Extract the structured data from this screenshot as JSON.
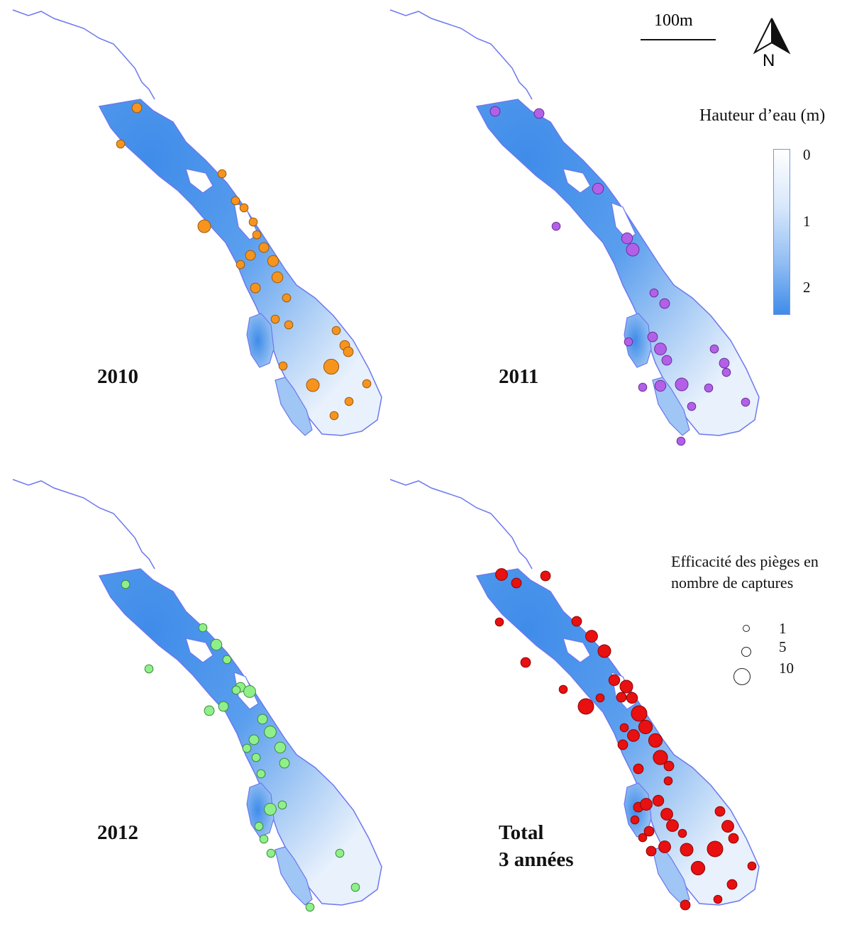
{
  "scale_bar": {
    "label": "100m"
  },
  "north_arrow": {
    "label": "N"
  },
  "depth_legend": {
    "title": "Hauteur d’eau (m)",
    "ticks": [
      "0",
      "1",
      "2"
    ],
    "color_top": "#ffffff",
    "color_bottom": "#3f8ce9"
  },
  "capture_legend": {
    "title_line1": "Efficacité des pièges en",
    "title_line2": "nombre de captures",
    "sizes": [
      "1",
      "5",
      "10"
    ]
  },
  "panels": [
    {
      "year": "2010",
      "label_line2": "",
      "marker_color": "#f7941d",
      "marker_stroke": "#9a5a10",
      "traps": [
        [
          193,
          152,
          2
        ],
        [
          170,
          203,
          1
        ],
        [
          313,
          245,
          1
        ],
        [
          332,
          283,
          1
        ],
        [
          288,
          319,
          5
        ],
        [
          344,
          293,
          1
        ],
        [
          357,
          313,
          1
        ],
        [
          362,
          331,
          1
        ],
        [
          372,
          349,
          2
        ],
        [
          385,
          368,
          3
        ],
        [
          353,
          360,
          2
        ],
        [
          339,
          373,
          1
        ],
        [
          391,
          391,
          3
        ],
        [
          360,
          406,
          2
        ],
        [
          404,
          420,
          1
        ],
        [
          388,
          450,
          1
        ],
        [
          407,
          458,
          1
        ],
        [
          474,
          466,
          1
        ],
        [
          486,
          487,
          2
        ],
        [
          491,
          496,
          2
        ],
        [
          467,
          517,
          8
        ],
        [
          399,
          516,
          1
        ],
        [
          441,
          543,
          5
        ],
        [
          517,
          541,
          1
        ],
        [
          492,
          566,
          1
        ],
        [
          471,
          586,
          1
        ]
      ]
    },
    {
      "year": "2011",
      "label_line2": "",
      "marker_color": "#b260e8",
      "marker_stroke": "#6b2f96",
      "traps": [
        [
          698,
          157,
          2
        ],
        [
          760,
          160,
          2
        ],
        [
          843,
          266,
          3
        ],
        [
          784,
          319,
          1
        ],
        [
          884,
          336,
          3
        ],
        [
          892,
          352,
          5
        ],
        [
          922,
          413,
          1
        ],
        [
          937,
          428,
          2
        ],
        [
          920,
          475,
          2
        ],
        [
          886,
          482,
          1
        ],
        [
          931,
          492,
          4
        ],
        [
          940,
          508,
          2
        ],
        [
          1007,
          492,
          1
        ],
        [
          1021,
          512,
          2
        ],
        [
          1024,
          525,
          1
        ],
        [
          961,
          542,
          5
        ],
        [
          931,
          544,
          3
        ],
        [
          906,
          546,
          1
        ],
        [
          999,
          547,
          1
        ],
        [
          975,
          573,
          1
        ],
        [
          1051,
          567,
          1
        ],
        [
          960,
          622,
          1
        ]
      ]
    },
    {
      "year": "2012",
      "label_line2": "",
      "marker_color": "#8ff08a",
      "marker_stroke": "#3c8a3a",
      "traps": [
        [
          177,
          824,
          1
        ],
        [
          286,
          885,
          1
        ],
        [
          305,
          909,
          3
        ],
        [
          320,
          930,
          1
        ],
        [
          210,
          943,
          1
        ],
        [
          339,
          969,
          2
        ],
        [
          352,
          975,
          4
        ],
        [
          333,
          973,
          1
        ],
        [
          295,
          1002,
          2
        ],
        [
          315,
          996,
          2
        ],
        [
          370,
          1014,
          2
        ],
        [
          381,
          1032,
          4
        ],
        [
          358,
          1043,
          2
        ],
        [
          348,
          1055,
          1
        ],
        [
          395,
          1054,
          3
        ],
        [
          361,
          1068,
          1
        ],
        [
          401,
          1076,
          2
        ],
        [
          368,
          1091,
          1
        ],
        [
          381,
          1141,
          4
        ],
        [
          398,
          1135,
          1
        ],
        [
          365,
          1165,
          1
        ],
        [
          372,
          1183,
          1
        ],
        [
          382,
          1203,
          1
        ],
        [
          479,
          1203,
          1
        ],
        [
          501,
          1251,
          1
        ],
        [
          437,
          1279,
          1
        ]
      ]
    },
    {
      "year": "Total",
      "label_line2": "3 années",
      "marker_color": "#e81010",
      "marker_stroke": "#8a0606",
      "traps": [
        [
          707,
          810,
          4
        ],
        [
          728,
          822,
          2
        ],
        [
          769,
          812,
          2
        ],
        [
          704,
          877,
          1
        ],
        [
          813,
          876,
          2
        ],
        [
          834,
          897,
          4
        ],
        [
          852,
          918,
          5
        ],
        [
          741,
          934,
          2
        ],
        [
          866,
          959,
          3
        ],
        [
          883,
          968,
          5
        ],
        [
          876,
          983,
          2
        ],
        [
          794,
          972,
          1
        ],
        [
          825,
          993,
          1
        ],
        [
          846,
          984,
          1
        ],
        [
          826,
          996,
          9
        ],
        [
          891,
          984,
          3
        ],
        [
          901,
          1006,
          9
        ],
        [
          910,
          1025,
          6
        ],
        [
          880,
          1026,
          1
        ],
        [
          893,
          1037,
          4
        ],
        [
          924,
          1044,
          6
        ],
        [
          878,
          1050,
          2
        ],
        [
          931,
          1068,
          7
        ],
        [
          943,
          1080,
          2
        ],
        [
          900,
          1084,
          2
        ],
        [
          942,
          1101,
          1
        ],
        [
          900,
          1138,
          2
        ],
        [
          911,
          1134,
          4
        ],
        [
          928,
          1129,
          3
        ],
        [
          940,
          1148,
          4
        ],
        [
          948,
          1164,
          4
        ],
        [
          895,
          1156,
          1
        ],
        [
          915,
          1172,
          2
        ],
        [
          962,
          1175,
          1
        ],
        [
          906,
          1181,
          1
        ],
        [
          1015,
          1144,
          2
        ],
        [
          1026,
          1165,
          4
        ],
        [
          1034,
          1182,
          2
        ],
        [
          918,
          1200,
          2
        ],
        [
          937,
          1194,
          4
        ],
        [
          968,
          1198,
          5
        ],
        [
          1008,
          1197,
          9
        ],
        [
          984,
          1224,
          6
        ],
        [
          1060,
          1221,
          1
        ],
        [
          1032,
          1247,
          2
        ],
        [
          1012,
          1268,
          1
        ],
        [
          966,
          1276,
          2
        ]
      ]
    }
  ]
}
